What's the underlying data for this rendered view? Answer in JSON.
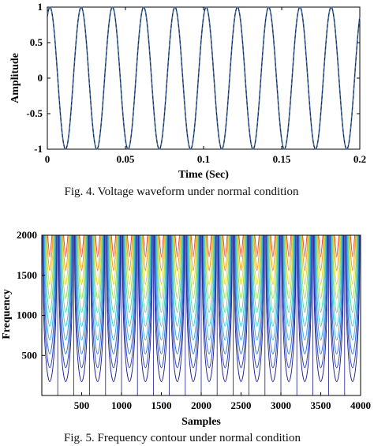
{
  "chart_data": [
    {
      "type": "line",
      "title": "",
      "xlabel": "Time (Sec)",
      "ylabel": "Amplitude",
      "xlim": [
        0,
        0.2
      ],
      "ylim": [
        -1,
        1
      ],
      "xticks": [
        "0",
        "0.05",
        "0.1",
        "0.15",
        "0.2"
      ],
      "xtick_values": [
        0,
        0.05,
        0.1,
        0.15,
        0.2
      ],
      "yticks": [
        "-1",
        "-0.5",
        "0",
        "0.5",
        "1"
      ],
      "ytick_values": [
        -1,
        -0.5,
        0,
        0.5,
        1
      ],
      "series": [
        {
          "function": "cosine",
          "frequency_hz": 50,
          "amplitude": 1,
          "phase_deg": -30,
          "x_range": [
            0,
            0.2
          ],
          "color": "#3d6fb5",
          "dash_color": "#222222"
        }
      ],
      "caption": "Fig. 4.  Voltage waveform under normal condition"
    },
    {
      "type": "contour",
      "title": "",
      "xlabel": "Samples",
      "ylabel": "Frequency",
      "xlim": [
        0,
        4000
      ],
      "ylim": [
        0,
        2000
      ],
      "xticks": [
        "500",
        "1000",
        "1500",
        "2000",
        "2500",
        "3000",
        "3500",
        "4000"
      ],
      "xtick_values": [
        500,
        1000,
        1500,
        2000,
        2500,
        3000,
        3500,
        4000
      ],
      "yticks": [
        "500",
        "1000",
        "1500",
        "2000"
      ],
      "ytick_values": [
        500,
        1000,
        1500,
        2000
      ],
      "cycles": 20,
      "levels": 10,
      "colormap": [
        "#1a1a8c",
        "#2440b8",
        "#2f6fd6",
        "#3aa3e6",
        "#36c8cf",
        "#5fd39a",
        "#a8d84a",
        "#e8d52a",
        "#f09a22",
        "#e0402a"
      ],
      "caption": "Fig. 5.  Frequency contour under normal condition"
    }
  ]
}
